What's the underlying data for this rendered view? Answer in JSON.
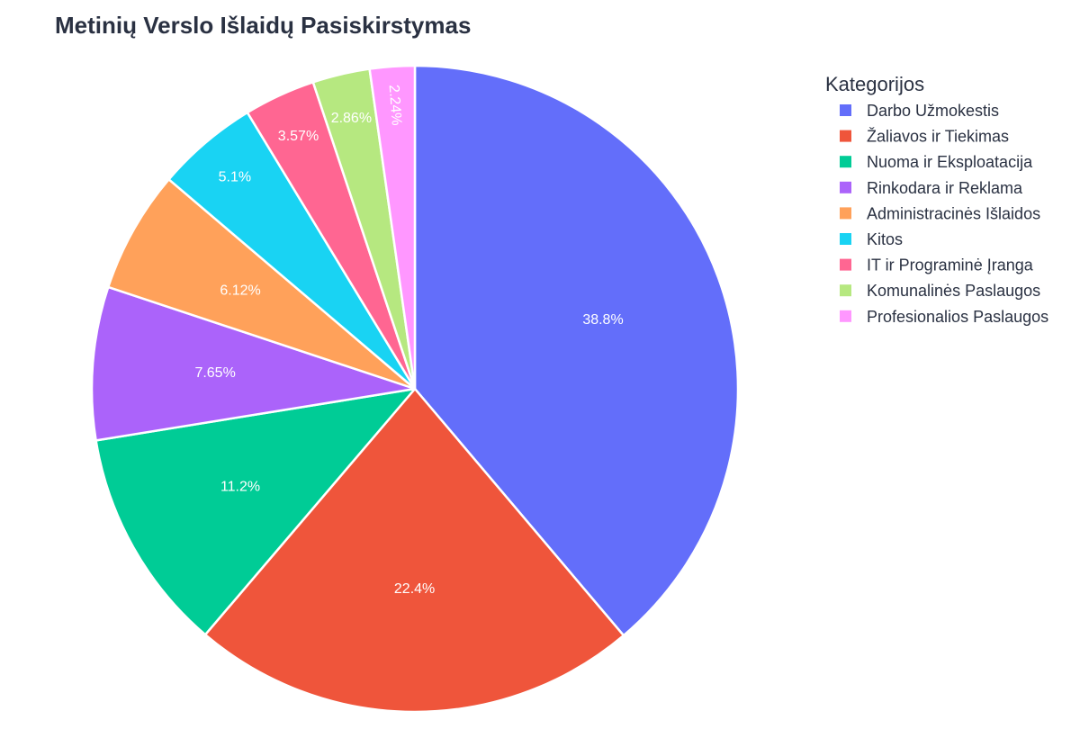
{
  "chart_data": {
    "type": "pie",
    "title": "Metinių Verslo Išlaidų Pasiskirstymas",
    "legend_title": "Kategorijos",
    "legend_position": "right",
    "direction": "clockwise",
    "start_angle": "top",
    "slices": [
      {
        "label": "Darbo Užmokestis",
        "value": 38.8,
        "text": "38.8%",
        "color": "#636efa"
      },
      {
        "label": "Žaliavos ir Tiekimas",
        "value": 22.4,
        "text": "22.4%",
        "color": "#ef553b"
      },
      {
        "label": "Nuoma ir Eksploatacija",
        "value": 11.2,
        "text": "11.2%",
        "color": "#00cc96"
      },
      {
        "label": "Rinkodara ir Reklama",
        "value": 7.65,
        "text": "7.65%",
        "color": "#ab63fa"
      },
      {
        "label": "Administracinės Išlaidos",
        "value": 6.12,
        "text": "6.12%",
        "color": "#ffa15a"
      },
      {
        "label": "Kitos",
        "value": 5.1,
        "text": "5.1%",
        "color": "#19d3f3"
      },
      {
        "label": "IT ir Programinė Įranga",
        "value": 3.57,
        "text": "3.57%",
        "color": "#ff6692"
      },
      {
        "label": "Komunalinės Paslaugos",
        "value": 2.86,
        "text": "2.86%",
        "color": "#b6e880"
      },
      {
        "label": "Profesionalios Paslaugos",
        "value": 2.24,
        "text": "2.24%",
        "color": "#ff97ff"
      }
    ],
    "legend_order": [
      "Darbo Užmokestis",
      "Žaliavos ir Tiekimas",
      "Nuoma ir Eksploatacija",
      "Rinkodara ir Reklama",
      "Administracinės Išlaidos",
      "Kitos",
      "IT ir Programinė Įranga",
      "Komunalinės Paslaugos",
      "Profesionalios Paslaugos"
    ]
  }
}
